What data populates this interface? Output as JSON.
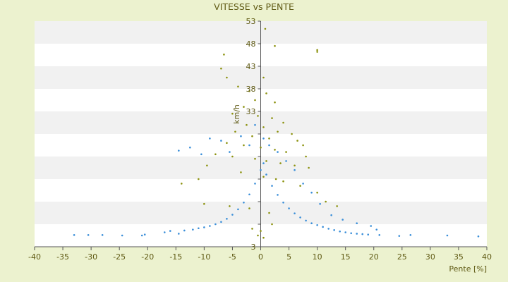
{
  "chart_data": {
    "type": "scatter",
    "title": "VITESSE vs PENTE",
    "xlabel": "Pente [%]",
    "ylabel": "km/h",
    "xlim": [
      -40,
      40
    ],
    "ylim": [
      3,
      53
    ],
    "xticks": [
      -40,
      -35,
      -30,
      -25,
      -20,
      -15,
      -10,
      -5,
      0,
      5,
      10,
      15,
      20,
      25,
      30,
      35,
      40
    ],
    "yticks": [
      3,
      8,
      13,
      18,
      23,
      28,
      33,
      38,
      43,
      48,
      53
    ],
    "ytick_labels_shown": [
      3,
      33,
      38,
      43,
      48,
      53
    ],
    "grid": "horizontal-bands",
    "series": [
      {
        "color": "#3b8fd9",
        "values": [
          [
            -33,
            5.6
          ],
          [
            -30.5,
            5.6
          ],
          [
            -28,
            5.6
          ],
          [
            -24.5,
            5.5
          ],
          [
            -21,
            5.5
          ],
          [
            -20.5,
            5.7
          ],
          [
            -17,
            6.2
          ],
          [
            -16,
            6.5
          ],
          [
            -14.5,
            5.9
          ],
          [
            -13.5,
            6.6
          ],
          [
            -12,
            6.8
          ],
          [
            -11,
            7.1
          ],
          [
            -10,
            7.3
          ],
          [
            -9,
            7.6
          ],
          [
            -8,
            8.0
          ],
          [
            -7,
            8.5
          ],
          [
            -6,
            9.2
          ],
          [
            -5,
            10.1
          ],
          [
            -4,
            11.3
          ],
          [
            -3,
            12.8
          ],
          [
            -2,
            14.6
          ],
          [
            -1,
            17.0
          ],
          [
            0,
            20.0
          ],
          [
            0.5,
            21.5
          ],
          [
            1,
            19.0
          ],
          [
            2,
            16.5
          ],
          [
            3,
            14.5
          ],
          [
            4,
            12.8
          ],
          [
            5,
            11.5
          ],
          [
            6,
            10.4
          ],
          [
            7,
            9.5
          ],
          [
            8,
            8.8
          ],
          [
            9,
            8.2
          ],
          [
            10,
            7.8
          ],
          [
            11,
            7.4
          ],
          [
            12,
            7.0
          ],
          [
            13,
            6.7
          ],
          [
            14,
            6.4
          ],
          [
            15,
            6.2
          ],
          [
            16,
            6.0
          ],
          [
            17,
            5.9
          ],
          [
            18,
            5.8
          ],
          [
            19,
            5.7
          ],
          [
            21,
            5.6
          ],
          [
            24.5,
            5.4
          ],
          [
            26.5,
            5.6
          ],
          [
            33,
            5.5
          ],
          [
            38.5,
            5.3
          ],
          [
            -14.5,
            24.3
          ],
          [
            -12.5,
            25.0
          ],
          [
            -10.5,
            23.5
          ],
          [
            -9,
            27.0
          ],
          [
            -7,
            26.5
          ],
          [
            -5.5,
            24.0
          ],
          [
            -3.5,
            27.5
          ],
          [
            -2,
            25.5
          ],
          [
            -1,
            30.0
          ],
          [
            0.5,
            27.0
          ],
          [
            1.5,
            25.5
          ],
          [
            3,
            24.0
          ],
          [
            4.5,
            22.0
          ],
          [
            6,
            20.0
          ],
          [
            7.5,
            17.0
          ],
          [
            9,
            15.0
          ],
          [
            10.5,
            12.5
          ],
          [
            12.5,
            10.0
          ],
          [
            14.5,
            9.0
          ],
          [
            17,
            8.2
          ],
          [
            19.5,
            7.6
          ],
          [
            20.5,
            6.8
          ]
        ]
      },
      {
        "color": "#8c920f",
        "values": [
          [
            0.8,
            51.3
          ],
          [
            2.5,
            47.5
          ],
          [
            10,
            46.6
          ],
          [
            10,
            46.2
          ],
          [
            -6.5,
            45.6
          ],
          [
            -7,
            42.5
          ],
          [
            -6,
            40.5
          ],
          [
            -4,
            38.5
          ],
          [
            0.5,
            40.5
          ],
          [
            -2,
            37.5
          ],
          [
            1,
            37.0
          ],
          [
            2.5,
            35.0
          ],
          [
            -1,
            35.5
          ],
          [
            -3,
            34.0
          ],
          [
            -5,
            32.5
          ],
          [
            -0.5,
            32.0
          ],
          [
            2,
            31.5
          ],
          [
            4,
            30.5
          ],
          [
            -2.5,
            30.0
          ],
          [
            0.5,
            29.5
          ],
          [
            3,
            28.5
          ],
          [
            5.5,
            28.0
          ],
          [
            -4.5,
            28.5
          ],
          [
            -1.5,
            27.5
          ],
          [
            1.5,
            27.0
          ],
          [
            6.5,
            26.5
          ],
          [
            7.5,
            25.5
          ],
          [
            -6,
            26.0
          ],
          [
            -3,
            25.5
          ],
          [
            0,
            25.0
          ],
          [
            2.5,
            24.5
          ],
          [
            4.5,
            24.0
          ],
          [
            8,
            23.0
          ],
          [
            -8,
            23.5
          ],
          [
            -5,
            23.0
          ],
          [
            -1,
            22.5
          ],
          [
            1,
            22.0
          ],
          [
            3.5,
            21.5
          ],
          [
            6,
            21.0
          ],
          [
            8.5,
            20.5
          ],
          [
            -9.5,
            21.0
          ],
          [
            -11,
            18.0
          ],
          [
            -14,
            17.0
          ],
          [
            -3.5,
            19.5
          ],
          [
            0.5,
            18.5
          ],
          [
            4,
            17.5
          ],
          [
            7,
            16.5
          ],
          [
            10,
            15.0
          ],
          [
            11.5,
            13.0
          ],
          [
            13.5,
            12.0
          ],
          [
            -10,
            12.5
          ],
          [
            -5.5,
            12.0
          ],
          [
            -2,
            11.5
          ],
          [
            1.5,
            10.5
          ],
          [
            -1.5,
            7.0
          ],
          [
            0,
            6.5
          ],
          [
            -0.5,
            5.5
          ],
          [
            0.5,
            5.0
          ],
          [
            2,
            8.0
          ],
          [
            2.7,
            18.0
          ]
        ]
      }
    ]
  }
}
